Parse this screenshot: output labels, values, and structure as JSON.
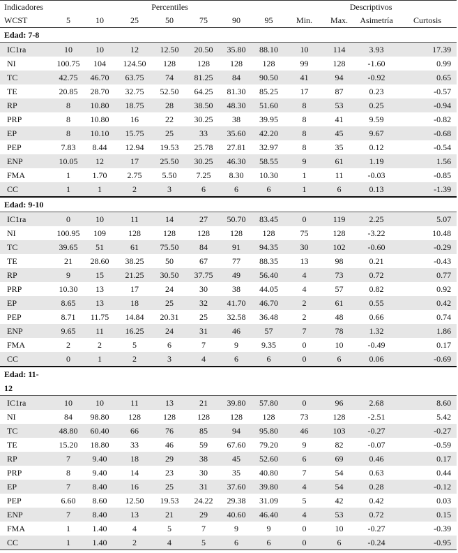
{
  "header": {
    "indicators_line1": "Indicadores",
    "indicators_line2": "WCST",
    "percentiles_label": "Percentiles",
    "descriptives_label": "Descriptivos",
    "columns": [
      "5",
      "10",
      "25",
      "50",
      "75",
      "90",
      "95",
      "Min.",
      "Max.",
      "Asimetría",
      "Curtosis"
    ]
  },
  "groups": [
    {
      "label": "Edad: 7-8",
      "rows": [
        {
          "name": "IC1ra",
          "values": [
            "10",
            "10",
            "12",
            "12.50",
            "20.50",
            "35.80",
            "88.10",
            "10",
            "114",
            "3.93",
            "17.39"
          ]
        },
        {
          "name": "NI",
          "values": [
            "100.75",
            "104",
            "124.50",
            "128",
            "128",
            "128",
            "128",
            "99",
            "128",
            "-1.60",
            "0.99"
          ]
        },
        {
          "name": "TC",
          "values": [
            "42.75",
            "46.70",
            "63.75",
            "74",
            "81.25",
            "84",
            "90.50",
            "41",
            "94",
            "-0.92",
            "0.65"
          ]
        },
        {
          "name": "TE",
          "values": [
            "20.85",
            "28.70",
            "32.75",
            "52.50",
            "64.25",
            "81.30",
            "85.25",
            "17",
            "87",
            "0.23",
            "-0.57"
          ]
        },
        {
          "name": "RP",
          "values": [
            "8",
            "10.80",
            "18.75",
            "28",
            "38.50",
            "48.30",
            "51.60",
            "8",
            "53",
            "0.25",
            "-0.94"
          ]
        },
        {
          "name": "PRP",
          "values": [
            "8",
            "10.80",
            "16",
            "22",
            "30.25",
            "38",
            "39.95",
            "8",
            "41",
            "9.59",
            "-0.82"
          ]
        },
        {
          "name": "EP",
          "values": [
            "8",
            "10.10",
            "15.75",
            "25",
            "33",
            "35.60",
            "42.20",
            "8",
            "45",
            "9.67",
            "-0.68"
          ]
        },
        {
          "name": "PEP",
          "values": [
            "7.83",
            "8.44",
            "12.94",
            "19.53",
            "25.78",
            "27.81",
            "32.97",
            "8",
            "35",
            "0.12",
            "-0.54"
          ]
        },
        {
          "name": "ENP",
          "values": [
            "10.05",
            "12",
            "17",
            "25.50",
            "30.25",
            "46.30",
            "58.55",
            "9",
            "61",
            "1.19",
            "1.56"
          ]
        },
        {
          "name": "FMA",
          "values": [
            "1",
            "1.70",
            "2.75",
            "5.50",
            "7.25",
            "8.30",
            "10.30",
            "1",
            "11",
            "-0.03",
            "-0.85"
          ]
        },
        {
          "name": "CC",
          "values": [
            "1",
            "1",
            "2",
            "3",
            "6",
            "6",
            "6",
            "1",
            "6",
            "0.13",
            "-1.39"
          ]
        }
      ]
    },
    {
      "label": "Edad: 9-10",
      "rows": [
        {
          "name": "IC1ra",
          "values": [
            "0",
            "10",
            "11",
            "14",
            "27",
            "50.70",
            "83.45",
            "0",
            "119",
            "2.25",
            "5.07"
          ]
        },
        {
          "name": "NI",
          "values": [
            "100.95",
            "109",
            "128",
            "128",
            "128",
            "128",
            "128",
            "75",
            "128",
            "-3.22",
            "10.48"
          ]
        },
        {
          "name": "TC",
          "values": [
            "39.65",
            "51",
            "61",
            "75.50",
            "84",
            "91",
            "94.35",
            "30",
            "102",
            "-0.60",
            "-0.29"
          ]
        },
        {
          "name": "TE",
          "values": [
            "21",
            "28.60",
            "38.25",
            "50",
            "67",
            "77",
            "88.35",
            "13",
            "98",
            "0.21",
            "-0.43"
          ]
        },
        {
          "name": "RP",
          "values": [
            "9",
            "15",
            "21.25",
            "30.50",
            "37.75",
            "49",
            "56.40",
            "4",
            "73",
            "0.72",
            "0.77"
          ]
        },
        {
          "name": "PRP",
          "values": [
            "10.30",
            "13",
            "17",
            "24",
            "30",
            "38",
            "44.05",
            "4",
            "57",
            "0.82",
            "0.92"
          ]
        },
        {
          "name": "EP",
          "values": [
            "8.65",
            "13",
            "18",
            "25",
            "32",
            "41.70",
            "46.70",
            "2",
            "61",
            "0.55",
            "0.42"
          ]
        },
        {
          "name": "PEP",
          "values": [
            "8.71",
            "11.75",
            "14.84",
            "20.31",
            "25",
            "32.58",
            "36.48",
            "2",
            "48",
            "0.66",
            "0.74"
          ]
        },
        {
          "name": "ENP",
          "values": [
            "9.65",
            "11",
            "16.25",
            "24",
            "31",
            "46",
            "57",
            "7",
            "78",
            "1.32",
            "1.86"
          ]
        },
        {
          "name": "FMA",
          "values": [
            "2",
            "2",
            "5",
            "6",
            "7",
            "9",
            "9.35",
            "0",
            "10",
            "-0.49",
            "0.17"
          ]
        },
        {
          "name": "CC",
          "values": [
            "0",
            "1",
            "2",
            "3",
            "4",
            "6",
            "6",
            "0",
            "6",
            "0.06",
            "-0.69"
          ]
        }
      ]
    },
    {
      "label_line1": "Edad: 11-",
      "label_line2": "12",
      "rows": [
        {
          "name": "IC1ra",
          "values": [
            "10",
            "10",
            "11",
            "13",
            "21",
            "39.80",
            "57.80",
            "0",
            "96",
            "2.68",
            "8.60"
          ]
        },
        {
          "name": "NI",
          "values": [
            "84",
            "98.80",
            "128",
            "128",
            "128",
            "128",
            "128",
            "73",
            "128",
            "-2.51",
            "5.42"
          ]
        },
        {
          "name": "TC",
          "values": [
            "48.80",
            "60.40",
            "66",
            "76",
            "85",
            "94",
            "95.80",
            "46",
            "103",
            "-0.27",
            "-0.27"
          ]
        },
        {
          "name": "TE",
          "values": [
            "15.20",
            "18.80",
            "33",
            "46",
            "59",
            "67.60",
            "79.20",
            "9",
            "82",
            "-0.07",
            "-0.59"
          ]
        },
        {
          "name": "RP",
          "values": [
            "7",
            "9.40",
            "18",
            "29",
            "38",
            "45",
            "52.60",
            "6",
            "69",
            "0.46",
            "0.17"
          ]
        },
        {
          "name": "PRP",
          "values": [
            "8",
            "9.40",
            "14",
            "23",
            "30",
            "35",
            "40.80",
            "7",
            "54",
            "0.63",
            "0.44"
          ]
        },
        {
          "name": "EP",
          "values": [
            "7",
            "8.40",
            "16",
            "25",
            "31",
            "37.60",
            "39.80",
            "4",
            "54",
            "0.28",
            "-0.12"
          ]
        },
        {
          "name": "PEP",
          "values": [
            "6.60",
            "8.60",
            "12.50",
            "19.53",
            "24.22",
            "29.38",
            "31.09",
            "5",
            "42",
            "0.42",
            "0.03"
          ]
        },
        {
          "name": "ENP",
          "values": [
            "7",
            "8.40",
            "13",
            "21",
            "29",
            "40.60",
            "46.40",
            "4",
            "53",
            "0.72",
            "0.15"
          ]
        },
        {
          "name": "FMA",
          "values": [
            "1",
            "1.40",
            "4",
            "5",
            "7",
            "9",
            "9",
            "0",
            "10",
            "-0.27",
            "-0.39"
          ]
        },
        {
          "name": "CC",
          "values": [
            "1",
            "1.40",
            "2",
            "4",
            "5",
            "6",
            "6",
            "0",
            "6",
            "-0.24",
            "-0.95"
          ]
        }
      ]
    }
  ]
}
